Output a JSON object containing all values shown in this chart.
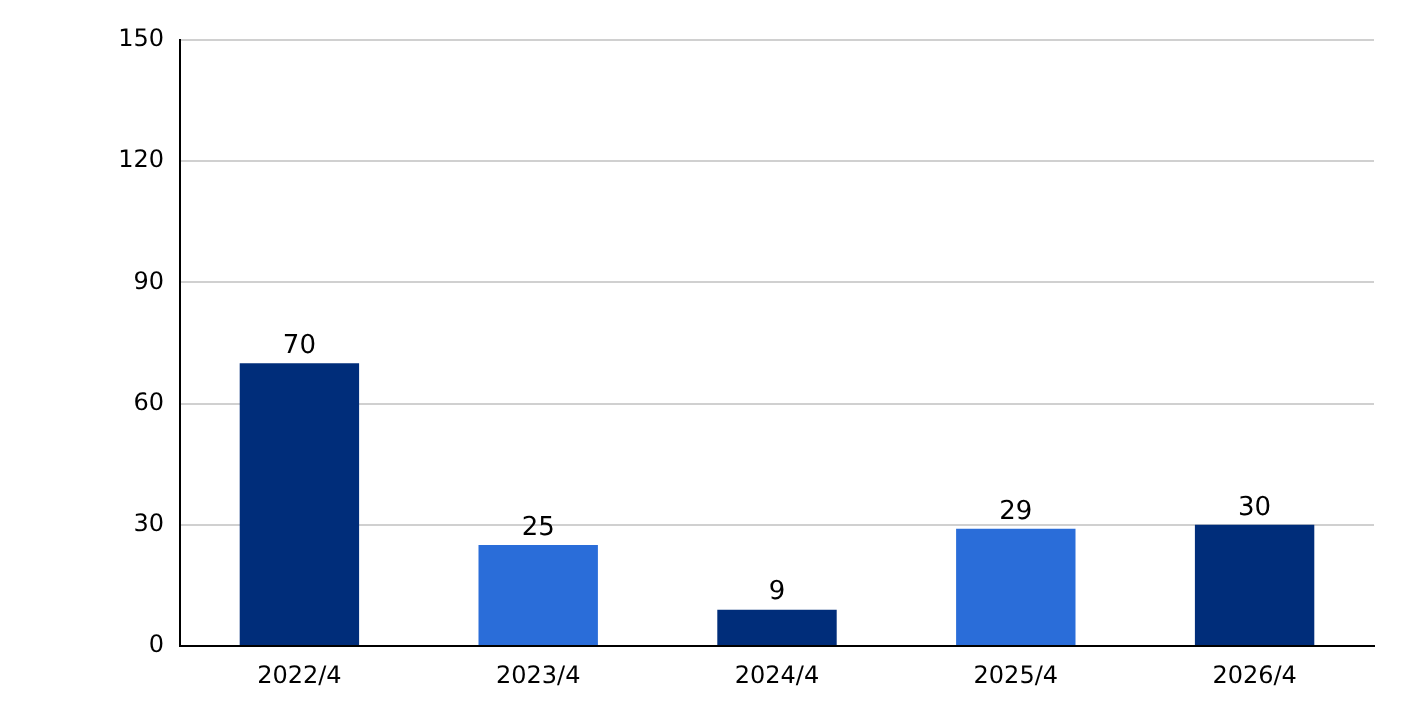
{
  "chart_data": {
    "type": "bar",
    "categories": [
      "2022/4",
      "2023/4",
      "2024/4",
      "2025/4",
      "2026/4"
    ],
    "values": [
      70,
      25,
      9,
      29,
      30
    ],
    "colors": [
      "#002d7a",
      "#2a6dd9",
      "#002d7a",
      "#2a6dd9",
      "#002d7a"
    ],
    "ylim": [
      0,
      150
    ],
    "yticks": [
      0,
      30,
      60,
      90,
      120,
      150
    ],
    "grid": "y",
    "legend": false,
    "data_labels": true
  }
}
